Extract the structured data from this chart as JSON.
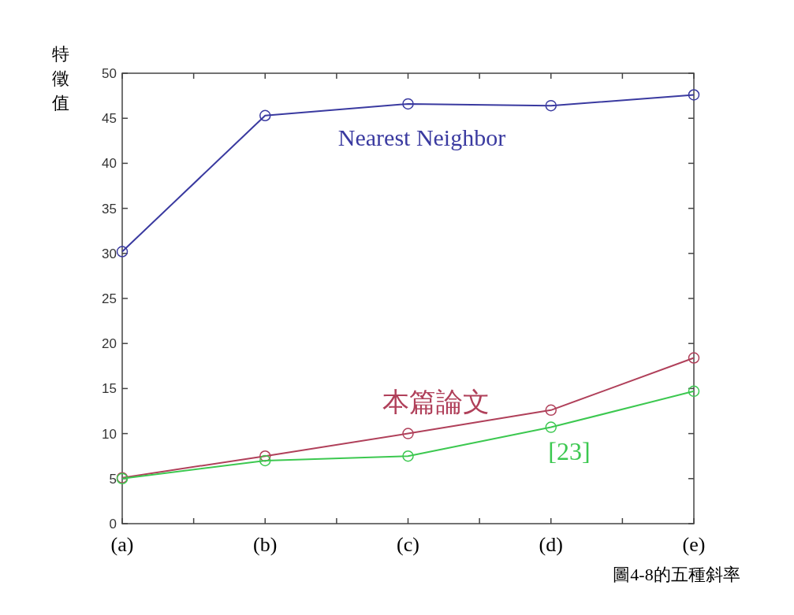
{
  "chart_data": {
    "type": "line",
    "ylabel": "特徵值",
    "annotations": [
      "圖4-8的五種斜率"
    ],
    "categories": [
      "(a)",
      "(b)",
      "(c)",
      "(d)",
      "(e)"
    ],
    "ylim": [
      0,
      50
    ],
    "yticks": [
      0,
      5,
      10,
      15,
      20,
      25,
      30,
      35,
      40,
      45,
      50
    ],
    "grid": false,
    "legend": false,
    "marker": "circle",
    "line_style": "solid",
    "series": [
      {
        "name": "Nearest Neighbor",
        "color": "#3a3aa0",
        "values": [
          30.2,
          45.3,
          46.6,
          46.4,
          47.6
        ]
      },
      {
        "name": "本篇論文",
        "color": "#b0405a",
        "values": [
          5.1,
          7.5,
          10.0,
          12.6,
          18.4
        ]
      },
      {
        "name": "[23]",
        "color": "#3cc850",
        "values": [
          5.0,
          7.0,
          7.5,
          10.7,
          14.7
        ]
      }
    ]
  }
}
